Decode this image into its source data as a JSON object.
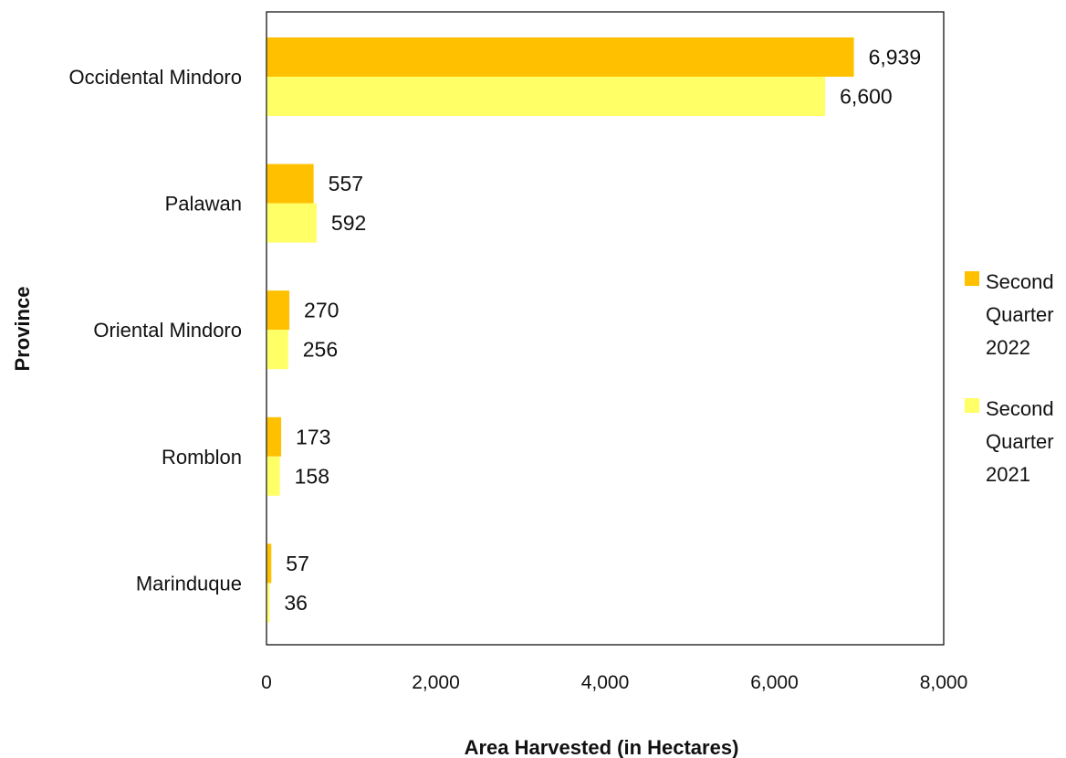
{
  "chart_data": {
    "type": "bar",
    "orientation": "horizontal",
    "categories": [
      "Occidental Mindoro",
      "Palawan",
      "Oriental Mindoro",
      "Romblon",
      "Marinduque"
    ],
    "series": [
      {
        "name": "Second Quarter 2022",
        "legend_lines": [
          "Second",
          "Quarter",
          "2022"
        ],
        "color": "#FFC000",
        "values": [
          6939,
          557,
          270,
          173,
          57
        ],
        "labels": [
          "6,939",
          "557",
          "270",
          "173",
          "57"
        ]
      },
      {
        "name": "Second Quarter 2021",
        "legend_lines": [
          "Second",
          "Quarter",
          "2021"
        ],
        "color": "#FFFF66",
        "values": [
          6600,
          592,
          256,
          158,
          36
        ],
        "labels": [
          "6,600",
          "592",
          "256",
          "158",
          "36"
        ]
      }
    ],
    "xlabel": "Area Harvested (in Hectares)",
    "ylabel": "Province",
    "xlim": [
      0,
      8000
    ],
    "xticks": [
      0,
      2000,
      4000,
      6000,
      8000
    ],
    "xtick_labels": [
      "0",
      "2,000",
      "4,000",
      "6,000",
      "8,000"
    ],
    "grid": false,
    "legend_position": "right"
  }
}
